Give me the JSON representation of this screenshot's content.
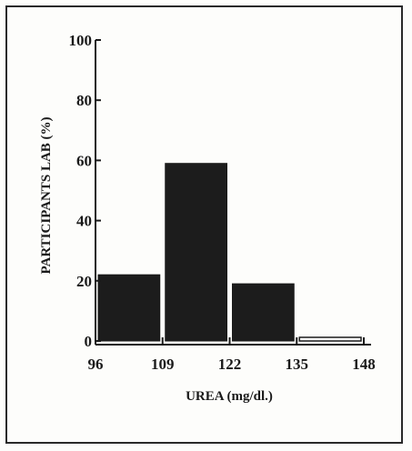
{
  "chart_data": {
    "type": "bar",
    "title": "",
    "xlabel": "UREA (mg/dl.)",
    "ylabel": "PARTICIPANTS LAB (%)",
    "x_ticks": [
      "96",
      "109",
      "122",
      "135",
      "148"
    ],
    "y_ticks": [
      "0",
      "20",
      "40",
      "60",
      "80",
      "100"
    ],
    "bins": [
      {
        "from": 96,
        "to": 109,
        "value": 22
      },
      {
        "from": 109,
        "to": 122,
        "value": 59
      },
      {
        "from": 122,
        "to": 135,
        "value": 19
      },
      {
        "from": 135,
        "to": 148,
        "value": 1
      }
    ],
    "xlim": [
      96,
      148
    ],
    "ylim": [
      0,
      100
    ],
    "colors": {
      "bar_fill": "#1c1c1c",
      "empty_bar_fill": "#ffffff",
      "axis": "#1a1a1a"
    },
    "grid": false,
    "legend": "none"
  }
}
